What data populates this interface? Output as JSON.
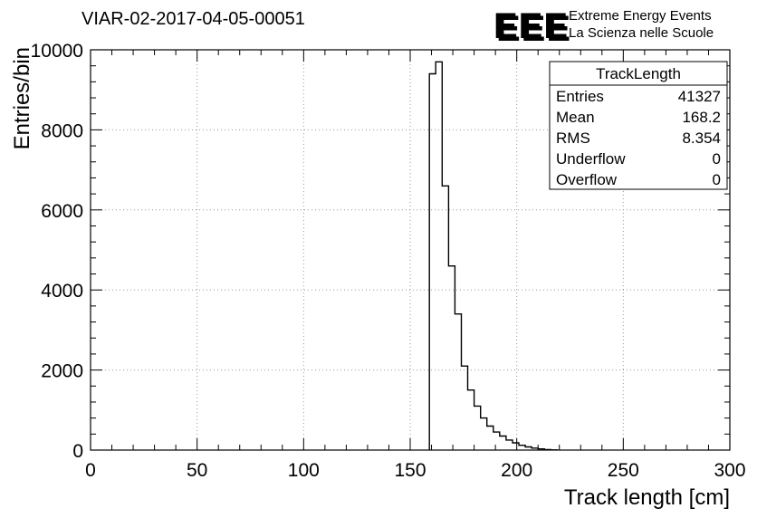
{
  "title": "VIAR-02-2017-04-05-00051",
  "logo": {
    "acronym": "EEE",
    "line1": "Extreme Energy Events",
    "line2": "La Scienza nelle Scuole",
    "color": "#2323cf",
    "shadow_color": "#b9bcd2"
  },
  "stats": {
    "title": "TrackLength",
    "rows": [
      {
        "label": "Entries",
        "value": "41327"
      },
      {
        "label": "Mean",
        "value": "168.2"
      },
      {
        "label": "RMS",
        "value": "8.354"
      },
      {
        "label": "Underflow",
        "value": "0"
      },
      {
        "label": "Overflow",
        "value": "0"
      }
    ]
  },
  "chart_data": {
    "type": "bar",
    "subtype": "step-histogram",
    "title": "VIAR-02-2017-04-05-00051",
    "xlabel": "Track length [cm]",
    "ylabel": "Entries/bin",
    "xlim": [
      0,
      300
    ],
    "ylim": [
      0,
      10000
    ],
    "x_ticks": [
      0,
      50,
      100,
      150,
      200,
      250,
      300
    ],
    "y_ticks": [
      0,
      2000,
      4000,
      6000,
      8000,
      10000
    ],
    "x_minor_step": 10,
    "y_minor_step": 400,
    "grid": true,
    "legend": "stats-box top-right",
    "line_color": "#000000",
    "grid_color": "#999999",
    "bins": {
      "start": 159,
      "width": 3,
      "counts": [
        9400,
        9700,
        6600,
        4600,
        3400,
        2100,
        1500,
        1100,
        800,
        600,
        450,
        350,
        250,
        180,
        120,
        80,
        50,
        30,
        12,
        5
      ]
    }
  }
}
